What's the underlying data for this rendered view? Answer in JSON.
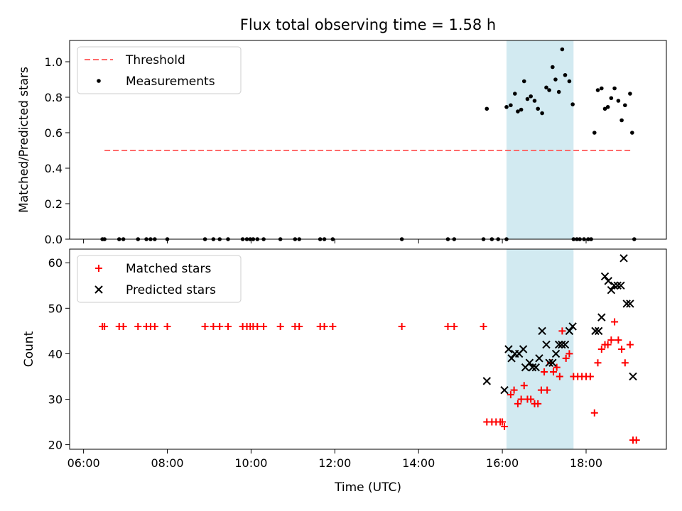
{
  "chart_data": [
    {
      "type": "scatter",
      "title": "Flux total observing time = 1.58 h",
      "xlabel": "",
      "ylabel": "Matched/Predicted stars",
      "xlim": [
        5.667,
        19.917
      ],
      "ylim": [
        0,
        1.12
      ],
      "yticks": [
        0.0,
        0.2,
        0.4,
        0.6,
        0.8,
        1.0
      ],
      "ytick_labels": [
        "0.0",
        "0.2",
        "0.4",
        "0.6",
        "0.8",
        "1.0"
      ],
      "highlight": {
        "x_start": 16.1,
        "x_end": 17.7,
        "color": "#add8e6"
      },
      "legend": {
        "placement": "upper left"
      },
      "series": [
        {
          "name": "Threshold",
          "style": "dashed-line",
          "color": "#ff6b6b",
          "x": [
            6.5,
            19.1
          ],
          "y": [
            0.5,
            0.5
          ]
        },
        {
          "name": "Measurements",
          "style": "point",
          "color": "#000000",
          "points": [
            [
              6.45,
              0
            ],
            [
              6.5,
              0
            ],
            [
              6.85,
              0
            ],
            [
              6.95,
              0
            ],
            [
              7.3,
              0
            ],
            [
              7.5,
              0
            ],
            [
              7.6,
              0
            ],
            [
              7.7,
              0
            ],
            [
              8.0,
              0
            ],
            [
              8.9,
              0
            ],
            [
              9.1,
              0
            ],
            [
              9.25,
              0
            ],
            [
              9.45,
              0
            ],
            [
              9.8,
              0
            ],
            [
              9.9,
              0
            ],
            [
              9.98,
              0
            ],
            [
              10.05,
              0
            ],
            [
              10.15,
              0
            ],
            [
              10.3,
              0
            ],
            [
              10.7,
              0
            ],
            [
              11.05,
              0
            ],
            [
              11.15,
              0
            ],
            [
              11.65,
              0
            ],
            [
              11.75,
              0
            ],
            [
              11.95,
              0
            ],
            [
              13.6,
              0
            ],
            [
              14.7,
              0
            ],
            [
              14.85,
              0
            ],
            [
              15.55,
              0
            ],
            [
              15.75,
              0
            ],
            [
              15.9,
              0
            ],
            [
              16.1,
              0
            ],
            [
              15.63,
              0.735
            ],
            [
              16.1,
              0.745
            ],
            [
              16.2,
              0.755
            ],
            [
              16.3,
              0.82
            ],
            [
              16.37,
              0.72
            ],
            [
              16.45,
              0.73
            ],
            [
              16.52,
              0.89
            ],
            [
              16.6,
              0.79
            ],
            [
              16.68,
              0.805
            ],
            [
              16.77,
              0.78
            ],
            [
              16.85,
              0.735
            ],
            [
              16.95,
              0.71
            ],
            [
              17.05,
              0.855
            ],
            [
              17.12,
              0.84
            ],
            [
              17.2,
              0.97
            ],
            [
              17.27,
              0.9
            ],
            [
              17.35,
              0.83
            ],
            [
              17.43,
              1.07
            ],
            [
              17.5,
              0.925
            ],
            [
              17.6,
              0.89
            ],
            [
              17.68,
              0.76
            ],
            [
              17.7,
              0
            ],
            [
              17.78,
              0
            ],
            [
              17.85,
              0
            ],
            [
              17.95,
              0
            ],
            [
              18.05,
              0
            ],
            [
              18.12,
              0
            ],
            [
              18.2,
              0.6
            ],
            [
              18.28,
              0.84
            ],
            [
              18.37,
              0.85
            ],
            [
              18.45,
              0.735
            ],
            [
              18.52,
              0.745
            ],
            [
              18.6,
              0.795
            ],
            [
              18.68,
              0.85
            ],
            [
              18.77,
              0.78
            ],
            [
              18.85,
              0.67
            ],
            [
              18.93,
              0.755
            ],
            [
              19.05,
              0.82
            ],
            [
              19.1,
              0.6
            ],
            [
              19.15,
              0
            ]
          ]
        }
      ]
    },
    {
      "type": "scatter",
      "title": "",
      "xlabel": "Time (UTC)",
      "ylabel": "Count",
      "xlim": [
        5.667,
        19.917
      ],
      "ylim": [
        19,
        63
      ],
      "yticks": [
        20,
        30,
        40,
        50,
        60
      ],
      "ytick_labels": [
        "20",
        "30",
        "40",
        "50",
        "60"
      ],
      "xticks": [
        6,
        8,
        10,
        12,
        14,
        16,
        18
      ],
      "xtick_labels": [
        "06:00",
        "08:00",
        "10:00",
        "12:00",
        "14:00",
        "16:00",
        "18:00"
      ],
      "highlight": {
        "x_start": 16.1,
        "x_end": 17.7,
        "color": "#add8e6"
      },
      "legend": {
        "placement": "upper left"
      },
      "series": [
        {
          "name": "Matched stars",
          "style": "plus",
          "color": "#ff0000",
          "points": [
            [
              6.45,
              46
            ],
            [
              6.5,
              46
            ],
            [
              6.85,
              46
            ],
            [
              6.95,
              46
            ],
            [
              7.3,
              46
            ],
            [
              7.5,
              46
            ],
            [
              7.6,
              46
            ],
            [
              7.7,
              46
            ],
            [
              8.0,
              46
            ],
            [
              8.9,
              46
            ],
            [
              9.1,
              46
            ],
            [
              9.25,
              46
            ],
            [
              9.45,
              46
            ],
            [
              9.8,
              46
            ],
            [
              9.9,
              46
            ],
            [
              9.98,
              46
            ],
            [
              10.05,
              46
            ],
            [
              10.15,
              46
            ],
            [
              10.3,
              46
            ],
            [
              10.7,
              46
            ],
            [
              11.05,
              46
            ],
            [
              11.15,
              46
            ],
            [
              11.65,
              46
            ],
            [
              11.75,
              46
            ],
            [
              11.95,
              46
            ],
            [
              13.6,
              46
            ],
            [
              14.7,
              46
            ],
            [
              14.85,
              46
            ],
            [
              15.55,
              46
            ],
            [
              15.63,
              25
            ],
            [
              15.75,
              25
            ],
            [
              15.85,
              25
            ],
            [
              15.95,
              25
            ],
            [
              16.0,
              25
            ],
            [
              16.05,
              24
            ],
            [
              16.2,
              31
            ],
            [
              16.28,
              32
            ],
            [
              16.37,
              29
            ],
            [
              16.45,
              30
            ],
            [
              16.52,
              33
            ],
            [
              16.6,
              30
            ],
            [
              16.68,
              30
            ],
            [
              16.77,
              29
            ],
            [
              16.85,
              29
            ],
            [
              16.93,
              32
            ],
            [
              17.0,
              36
            ],
            [
              17.07,
              32
            ],
            [
              17.15,
              38
            ],
            [
              17.22,
              36
            ],
            [
              17.3,
              37
            ],
            [
              17.37,
              35
            ],
            [
              17.43,
              45
            ],
            [
              17.52,
              39
            ],
            [
              17.6,
              40
            ],
            [
              17.7,
              35
            ],
            [
              17.8,
              35
            ],
            [
              17.9,
              35
            ],
            [
              18.0,
              35
            ],
            [
              18.1,
              35
            ],
            [
              18.2,
              27
            ],
            [
              18.28,
              38
            ],
            [
              18.37,
              41
            ],
            [
              18.45,
              42
            ],
            [
              18.52,
              42
            ],
            [
              18.6,
              43
            ],
            [
              18.68,
              47
            ],
            [
              18.77,
              43
            ],
            [
              18.85,
              41
            ],
            [
              18.93,
              38
            ],
            [
              19.05,
              42
            ],
            [
              19.12,
              21
            ],
            [
              19.2,
              21
            ]
          ]
        },
        {
          "name": "Predicted stars",
          "style": "cross",
          "color": "#000000",
          "points": [
            [
              15.63,
              34
            ],
            [
              16.05,
              32
            ],
            [
              16.15,
              41
            ],
            [
              16.22,
              39
            ],
            [
              16.3,
              40
            ],
            [
              16.4,
              40
            ],
            [
              16.5,
              41
            ],
            [
              16.55,
              37
            ],
            [
              16.65,
              38
            ],
            [
              16.72,
              37
            ],
            [
              16.8,
              37
            ],
            [
              16.88,
              39
            ],
            [
              16.95,
              45
            ],
            [
              17.05,
              42
            ],
            [
              17.12,
              38
            ],
            [
              17.2,
              38
            ],
            [
              17.28,
              40
            ],
            [
              17.35,
              42
            ],
            [
              17.42,
              42
            ],
            [
              17.5,
              42
            ],
            [
              17.6,
              45
            ],
            [
              17.68,
              46
            ],
            [
              18.22,
              45
            ],
            [
              18.3,
              45
            ],
            [
              18.37,
              48
            ],
            [
              18.45,
              57
            ],
            [
              18.53,
              56
            ],
            [
              18.6,
              54
            ],
            [
              18.67,
              55
            ],
            [
              18.75,
              55
            ],
            [
              18.83,
              55
            ],
            [
              18.9,
              61
            ],
            [
              18.97,
              51
            ],
            [
              19.05,
              51
            ],
            [
              19.12,
              35
            ]
          ]
        }
      ]
    }
  ]
}
